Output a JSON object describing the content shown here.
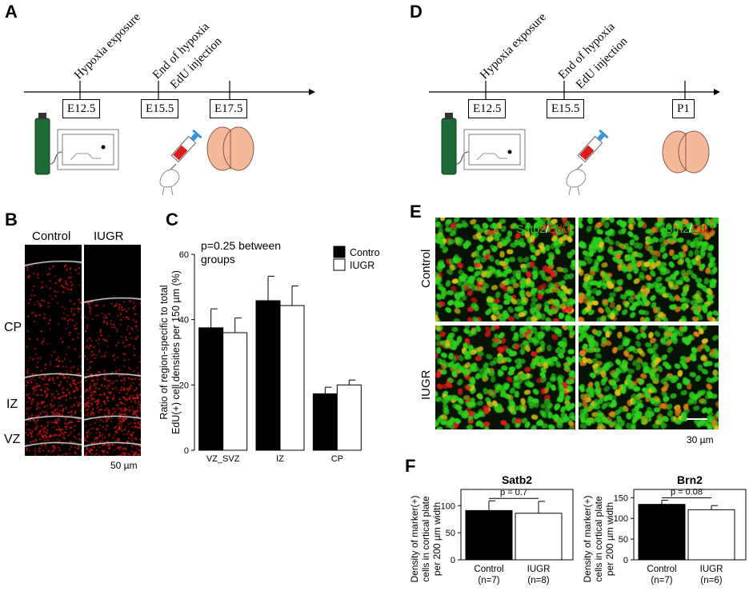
{
  "panels": {
    "A": {
      "letter": "A",
      "events": [
        "Hypoxia exposure",
        "End of hypoxia",
        "EdU injection"
      ],
      "timepoints": [
        "E12.5",
        "E15.5",
        "E17.5"
      ]
    },
    "D": {
      "letter": "D",
      "events": [
        "Hypoxia exposure",
        "End of hypoxia",
        "EdU injection"
      ],
      "timepoints": [
        "E12.5",
        "E15.5",
        "P1"
      ]
    },
    "B": {
      "letter": "B",
      "columns": [
        "Control",
        "IUGR"
      ],
      "regions": [
        "CP",
        "IZ",
        "VZ"
      ],
      "scale_bar": "50 µm"
    },
    "E": {
      "letter": "E",
      "rows": [
        "Control",
        "IUGR"
      ],
      "stain1_marker": "Satb2",
      "stain2_marker": "Brn2",
      "stain_separator": "/",
      "stain_edu": "EdU",
      "scale_bar": "30 µm",
      "colors": {
        "green": "#2fd11f",
        "red": "#e61b1b",
        "yellow": "#d9c21a"
      }
    },
    "C": {
      "letter": "C"
    },
    "F": {
      "letter": "F"
    }
  },
  "chart_data": [
    {
      "id": "C",
      "type": "bar",
      "categories": [
        "VZ_SVZ",
        "IZ",
        "CP"
      ],
      "series": [
        {
          "name": "Control",
          "values": [
            37.5,
            45.8,
            17.3
          ],
          "errors": [
            5.8,
            7.5,
            2.0
          ],
          "color": "#000000"
        },
        {
          "name": "IUGR",
          "values": [
            36.0,
            44.3,
            20.0
          ],
          "errors": [
            4.5,
            6.0,
            1.5
          ],
          "color": "#ffffff"
        }
      ],
      "ylabel_line1": "Ratio of region-specific  to total",
      "ylabel_line2": "EdU(+) cell densities per 150 µm  (%)",
      "ylim": [
        0,
        60
      ],
      "yticks": [
        0,
        20,
        40,
        60
      ],
      "annotation_line1": "p=0.25 between",
      "annotation_line2": "groups",
      "legend_placement": "top-right"
    },
    {
      "id": "F-Satb2",
      "type": "bar",
      "title": "Satb2",
      "categories": [
        "Control",
        "IUGR"
      ],
      "category_n": [
        "(n=7)",
        "(n=8)"
      ],
      "values": [
        91,
        86
      ],
      "errors": [
        18,
        22
      ],
      "colors": [
        "#000000",
        "#ffffff"
      ],
      "ylabel_line1": "Density of marker(+)",
      "ylabel_line2": "cells in cortical plate",
      "ylabel_line3": "per 200 µm width",
      "ylim": [
        0,
        130
      ],
      "yticks": [
        0,
        50,
        100
      ],
      "annotation": "p = 0.7"
    },
    {
      "id": "F-Brn2",
      "type": "bar",
      "title": "Brn2",
      "categories": [
        "Control",
        "IUGR"
      ],
      "category_n": [
        "(n=7)",
        "(n=6)"
      ],
      "values": [
        134,
        121
      ],
      "errors": [
        10,
        10
      ],
      "colors": [
        "#000000",
        "#ffffff"
      ],
      "ylabel_line1": "Density of marker(+)",
      "ylabel_line2": "cells in cortical plate",
      "ylabel_line3": "per 200 µm width",
      "ylim": [
        0,
        170
      ],
      "yticks": [
        0,
        50,
        100,
        150
      ],
      "annotation": "p = 0.08"
    }
  ]
}
